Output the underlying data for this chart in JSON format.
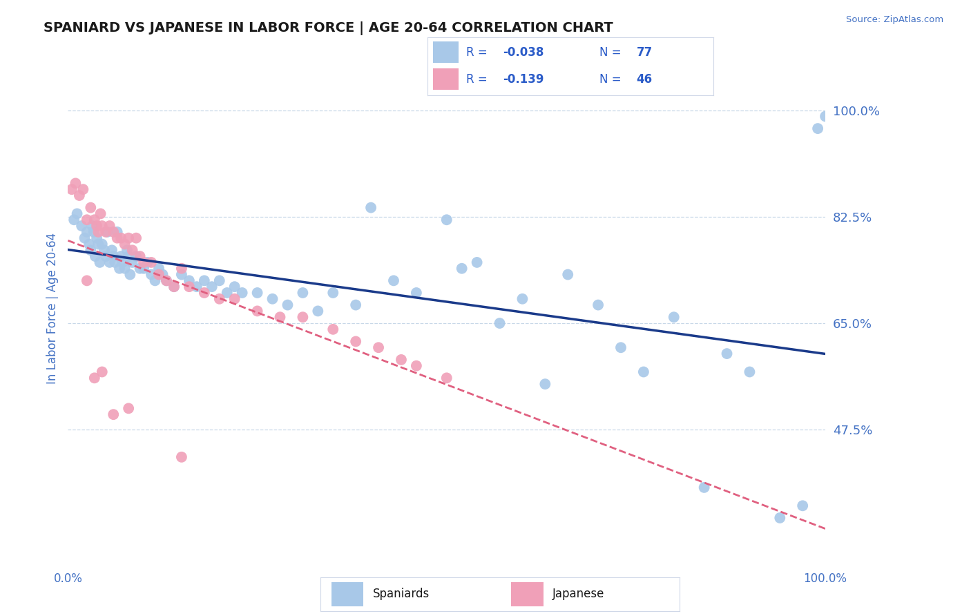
{
  "title": "SPANIARD VS JAPANESE IN LABOR FORCE | AGE 20-64 CORRELATION CHART",
  "source_text": "Source: ZipAtlas.com",
  "ylabel_label": "In Labor Force | Age 20-64",
  "ytick_labels": [
    "100.0%",
    "82.5%",
    "65.0%",
    "47.5%"
  ],
  "ytick_values": [
    1.0,
    0.825,
    0.65,
    0.475
  ],
  "xlim": [
    0.0,
    1.0
  ],
  "ylim": [
    0.27,
    1.08
  ],
  "spaniard_R": -0.038,
  "spaniard_N": 77,
  "japanese_R": -0.139,
  "japanese_N": 46,
  "spaniard_color": "#a8c8e8",
  "japanese_color": "#f0a0b8",
  "trend_blue_color": "#1a3a8a",
  "trend_pink_color": "#e06080",
  "background_color": "#ffffff",
  "grid_color": "#c8d8e8",
  "title_color": "#1a1a1a",
  "axis_label_color": "#4472c4",
  "right_tick_color": "#4472c4",
  "legend_text_color": "#2a5bc8",
  "spaniards_x": [
    0.008,
    0.012,
    0.018,
    0.022,
    0.025,
    0.028,
    0.03,
    0.032,
    0.034,
    0.036,
    0.038,
    0.04,
    0.042,
    0.045,
    0.048,
    0.05,
    0.052,
    0.055,
    0.058,
    0.06,
    0.062,
    0.065,
    0.068,
    0.07,
    0.072,
    0.075,
    0.078,
    0.08,
    0.082,
    0.085,
    0.09,
    0.095,
    0.1,
    0.105,
    0.11,
    0.115,
    0.12,
    0.125,
    0.13,
    0.14,
    0.15,
    0.16,
    0.17,
    0.18,
    0.19,
    0.2,
    0.21,
    0.22,
    0.23,
    0.25,
    0.27,
    0.29,
    0.31,
    0.33,
    0.35,
    0.38,
    0.4,
    0.43,
    0.46,
    0.5,
    0.52,
    0.54,
    0.57,
    0.6,
    0.63,
    0.66,
    0.7,
    0.73,
    0.76,
    0.8,
    0.84,
    0.87,
    0.9,
    0.94,
    0.97,
    0.99,
    1.0
  ],
  "spaniards_y": [
    0.82,
    0.83,
    0.81,
    0.79,
    0.8,
    0.78,
    0.77,
    0.81,
    0.8,
    0.76,
    0.79,
    0.78,
    0.75,
    0.78,
    0.77,
    0.76,
    0.8,
    0.75,
    0.77,
    0.76,
    0.75,
    0.8,
    0.74,
    0.76,
    0.75,
    0.74,
    0.77,
    0.76,
    0.73,
    0.75,
    0.76,
    0.74,
    0.74,
    0.75,
    0.73,
    0.72,
    0.74,
    0.73,
    0.72,
    0.71,
    0.73,
    0.72,
    0.71,
    0.72,
    0.71,
    0.72,
    0.7,
    0.71,
    0.7,
    0.7,
    0.69,
    0.68,
    0.7,
    0.67,
    0.7,
    0.68,
    0.84,
    0.72,
    0.7,
    0.82,
    0.74,
    0.75,
    0.65,
    0.69,
    0.55,
    0.73,
    0.68,
    0.61,
    0.57,
    0.66,
    0.38,
    0.6,
    0.57,
    0.33,
    0.35,
    0.97,
    0.99
  ],
  "japanese_x": [
    0.005,
    0.01,
    0.015,
    0.02,
    0.025,
    0.03,
    0.035,
    0.038,
    0.04,
    0.043,
    0.045,
    0.05,
    0.055,
    0.06,
    0.065,
    0.07,
    0.075,
    0.08,
    0.085,
    0.09,
    0.095,
    0.1,
    0.11,
    0.12,
    0.13,
    0.14,
    0.15,
    0.16,
    0.18,
    0.2,
    0.22,
    0.25,
    0.28,
    0.31,
    0.35,
    0.38,
    0.41,
    0.44,
    0.46,
    0.5,
    0.06,
    0.08,
    0.035,
    0.045,
    0.025,
    0.15
  ],
  "japanese_y": [
    0.87,
    0.88,
    0.86,
    0.87,
    0.82,
    0.84,
    0.82,
    0.81,
    0.8,
    0.83,
    0.81,
    0.8,
    0.81,
    0.8,
    0.79,
    0.79,
    0.78,
    0.79,
    0.77,
    0.79,
    0.76,
    0.75,
    0.75,
    0.73,
    0.72,
    0.71,
    0.74,
    0.71,
    0.7,
    0.69,
    0.69,
    0.67,
    0.66,
    0.66,
    0.64,
    0.62,
    0.61,
    0.59,
    0.58,
    0.56,
    0.5,
    0.51,
    0.56,
    0.57,
    0.72,
    0.43
  ]
}
